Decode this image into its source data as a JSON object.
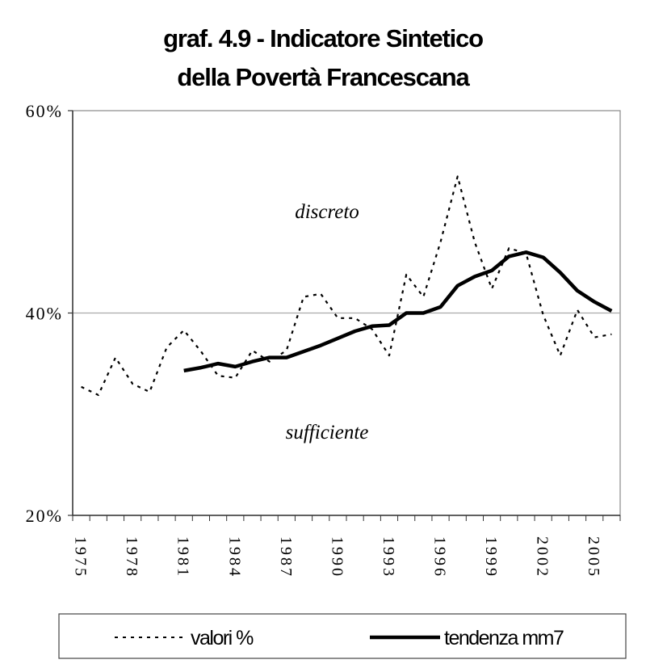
{
  "chart_data": {
    "type": "line",
    "title": "graf. 4.9 - Indicatore Sintetico\ndella Povertà Francescana",
    "title_lines": [
      "graf. 4.9 - Indicatore Sintetico",
      "della Povertà Francescana"
    ],
    "xlabel": "",
    "ylabel": "",
    "ylim": [
      20,
      60
    ],
    "y_ticks": [
      "20%",
      "40%",
      "60%"
    ],
    "y_tick_values": [
      20,
      40,
      60
    ],
    "x_tick_labels": [
      "1975",
      "1978",
      "1981",
      "1984",
      "1987",
      "1990",
      "1993",
      "1996",
      "1999",
      "2002",
      "2005"
    ],
    "x": [
      1975,
      1976,
      1977,
      1978,
      1979,
      1980,
      1981,
      1982,
      1983,
      1984,
      1985,
      1986,
      1987,
      1988,
      1989,
      1990,
      1991,
      1992,
      1993,
      1994,
      1995,
      1996,
      1997,
      1998,
      1999,
      2000,
      2001,
      2002,
      2003,
      2004,
      2005,
      2006
    ],
    "grid": "horizontal line at 40%",
    "annotations": [
      "discreto",
      "sufficiente"
    ],
    "legend_position": "bottom",
    "series": [
      {
        "name": "valori %",
        "style": "dotted",
        "color": "#000000",
        "values": [
          32.7,
          31.9,
          35.6,
          33.0,
          32.2,
          36.6,
          38.3,
          36.2,
          33.8,
          33.6,
          36.3,
          35.2,
          36.3,
          41.6,
          41.9,
          39.5,
          39.5,
          38.4,
          35.8,
          43.8,
          41.6,
          47.0,
          53.5,
          47.0,
          42.4,
          46.4,
          45.9,
          39.8,
          35.8,
          40.3,
          37.6,
          37.9
        ]
      },
      {
        "name": "tendenza mm7",
        "style": "solid",
        "color": "#000000",
        "values": [
          null,
          null,
          null,
          null,
          null,
          null,
          34.3,
          34.6,
          35.0,
          34.7,
          35.2,
          35.6,
          35.6,
          36.2,
          36.8,
          37.5,
          38.2,
          38.7,
          38.8,
          40.0,
          40.0,
          40.6,
          42.7,
          43.6,
          44.2,
          45.6,
          46.0,
          45.5,
          44.0,
          42.2,
          41.1,
          40.2
        ]
      }
    ]
  }
}
